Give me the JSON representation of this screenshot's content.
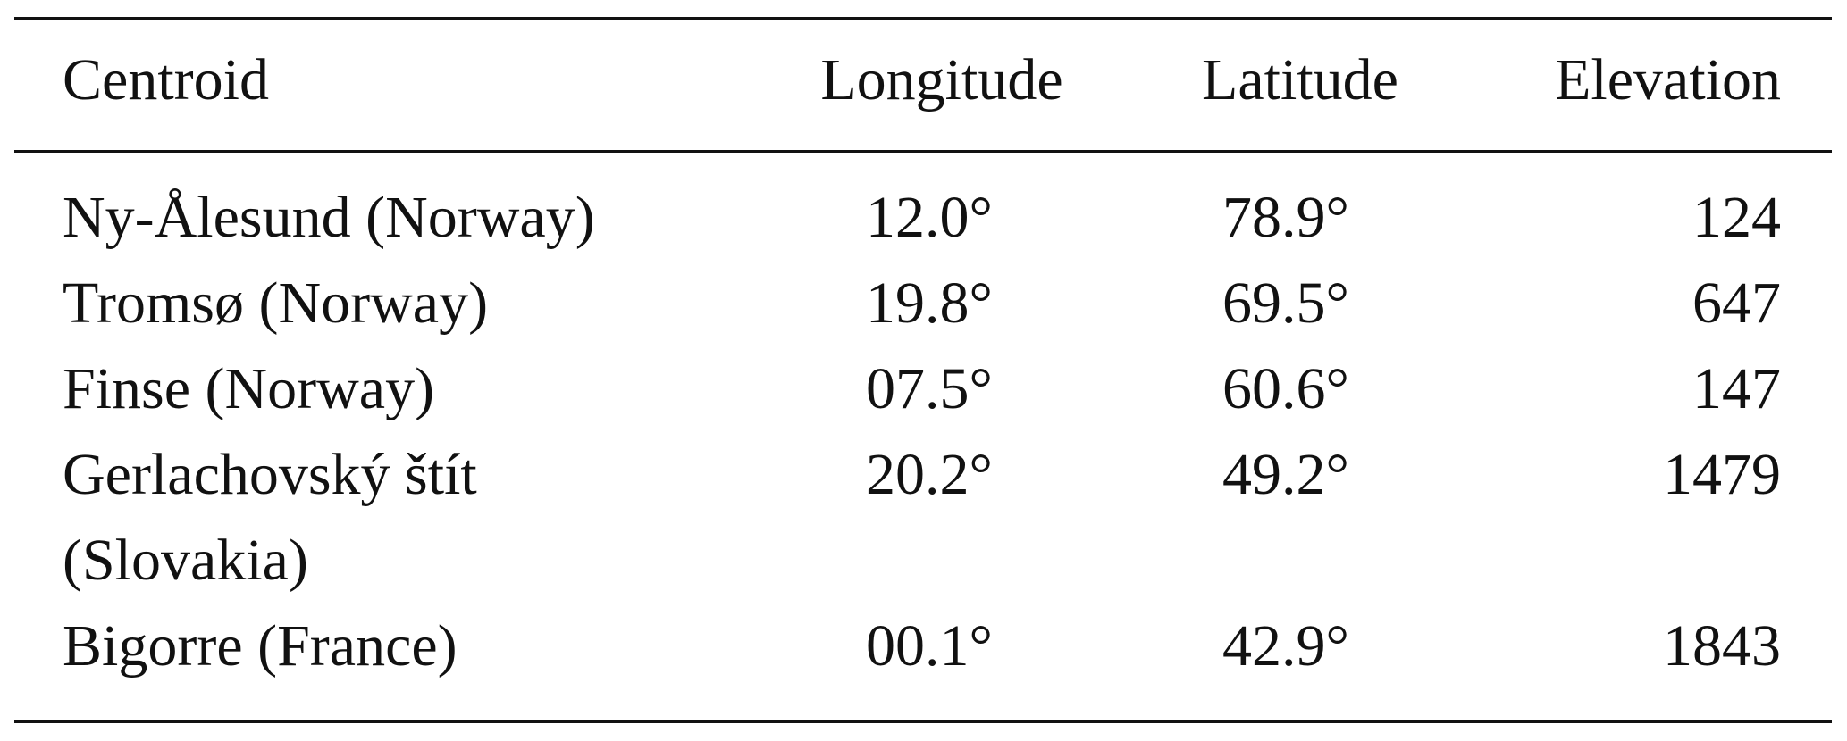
{
  "table": {
    "header": [
      "Centroid",
      "Longitude",
      "Latitude",
      "Elevation"
    ],
    "rows": [
      [
        "Ny-Ålesund (Norway)",
        "12.0°",
        "78.9°",
        "124"
      ],
      [
        "Tromsø (Norway)",
        "19.8°",
        "69.5°",
        "647"
      ],
      [
        "Finse (Norway)",
        "07.5°",
        "60.6°",
        "147"
      ],
      [
        "Gerlachovský štít (Slovakia)",
        "20.2°",
        "49.2°",
        "1479"
      ],
      [
        "Bigorre (France)",
        "00.1°",
        "42.9°",
        "1843"
      ]
    ]
  }
}
